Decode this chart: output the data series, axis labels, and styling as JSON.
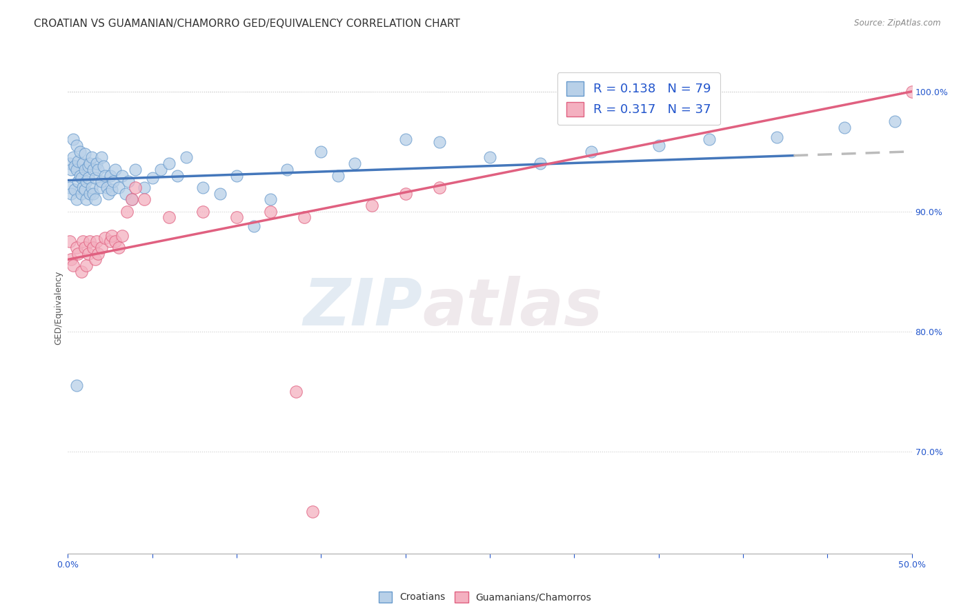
{
  "title": "CROATIAN VS GUAMANIAN/CHAMORRO GED/EQUIVALENCY CORRELATION CHART",
  "source": "Source: ZipAtlas.com",
  "ylabel": "GED/Equivalency",
  "xmin": 0.0,
  "xmax": 0.5,
  "ymin": 0.615,
  "ymax": 1.025,
  "yticks": [
    0.7,
    0.8,
    0.9,
    1.0
  ],
  "ytick_labels": [
    "70.0%",
    "80.0%",
    "90.0%",
    "100.0%"
  ],
  "xticks": [
    0.0,
    0.05,
    0.1,
    0.15,
    0.2,
    0.25,
    0.3,
    0.35,
    0.4,
    0.45,
    0.5
  ],
  "xtick_labels": [
    "0.0%",
    "",
    "",
    "",
    "",
    "",
    "",
    "",
    "",
    "",
    "50.0%"
  ],
  "croatian_R": 0.138,
  "croatian_N": 79,
  "guam_R": 0.317,
  "guam_N": 37,
  "watermark_zip": "ZIP",
  "watermark_atlas": "atlas",
  "legend_label_croatian": "Croatians",
  "legend_label_guam": "Guamanians/Chamorros",
  "color_croatian_fill": "#b8d0e8",
  "color_croatian_edge": "#6699cc",
  "color_guam_fill": "#f4b0c0",
  "color_guam_edge": "#e06080",
  "color_trendline_croatian": "#4477bb",
  "color_trendline_guam": "#e06080",
  "color_trendline_ext": "#bbbbbb",
  "trendline_croatian_y0": 0.926,
  "trendline_croatian_y1": 0.95,
  "trendline_guam_y0": 0.86,
  "trendline_guam_y1": 1.0,
  "trendline_solid_xmax": 0.43,
  "croatian_x": [
    0.001,
    0.001,
    0.002,
    0.002,
    0.003,
    0.003,
    0.004,
    0.004,
    0.005,
    0.005,
    0.005,
    0.006,
    0.006,
    0.007,
    0.007,
    0.008,
    0.008,
    0.009,
    0.009,
    0.01,
    0.01,
    0.01,
    0.011,
    0.011,
    0.012,
    0.012,
    0.013,
    0.013,
    0.014,
    0.014,
    0.015,
    0.015,
    0.016,
    0.016,
    0.017,
    0.018,
    0.019,
    0.02,
    0.02,
    0.021,
    0.022,
    0.023,
    0.024,
    0.025,
    0.026,
    0.027,
    0.028,
    0.03,
    0.032,
    0.034,
    0.036,
    0.038,
    0.04,
    0.045,
    0.05,
    0.055,
    0.06,
    0.065,
    0.07,
    0.08,
    0.09,
    0.1,
    0.11,
    0.12,
    0.13,
    0.15,
    0.16,
    0.17,
    0.2,
    0.22,
    0.25,
    0.28,
    0.31,
    0.35,
    0.38,
    0.42,
    0.46,
    0.49,
    0.005
  ],
  "croatian_y": [
    0.94,
    0.92,
    0.935,
    0.915,
    0.945,
    0.96,
    0.938,
    0.918,
    0.955,
    0.935,
    0.91,
    0.942,
    0.925,
    0.93,
    0.95,
    0.928,
    0.915,
    0.94,
    0.92,
    0.935,
    0.948,
    0.918,
    0.925,
    0.91,
    0.938,
    0.928,
    0.915,
    0.94,
    0.92,
    0.945,
    0.935,
    0.915,
    0.928,
    0.91,
    0.94,
    0.935,
    0.92,
    0.945,
    0.925,
    0.938,
    0.93,
    0.92,
    0.915,
    0.93,
    0.918,
    0.925,
    0.935,
    0.92,
    0.93,
    0.915,
    0.925,
    0.91,
    0.935,
    0.92,
    0.928,
    0.935,
    0.94,
    0.93,
    0.945,
    0.92,
    0.915,
    0.93,
    0.888,
    0.91,
    0.935,
    0.95,
    0.93,
    0.94,
    0.96,
    0.958,
    0.945,
    0.94,
    0.95,
    0.955,
    0.96,
    0.962,
    0.97,
    0.975,
    0.755
  ],
  "guam_x": [
    0.001,
    0.002,
    0.003,
    0.005,
    0.006,
    0.008,
    0.009,
    0.01,
    0.011,
    0.012,
    0.013,
    0.015,
    0.016,
    0.017,
    0.018,
    0.02,
    0.022,
    0.025,
    0.026,
    0.028,
    0.03,
    0.032,
    0.035,
    0.038,
    0.04,
    0.045,
    0.06,
    0.08,
    0.1,
    0.12,
    0.14,
    0.18,
    0.2,
    0.22,
    0.145,
    0.5,
    0.135
  ],
  "guam_y": [
    0.875,
    0.86,
    0.855,
    0.87,
    0.865,
    0.85,
    0.875,
    0.87,
    0.855,
    0.865,
    0.875,
    0.87,
    0.86,
    0.875,
    0.865,
    0.87,
    0.878,
    0.875,
    0.88,
    0.875,
    0.87,
    0.88,
    0.9,
    0.91,
    0.92,
    0.91,
    0.895,
    0.9,
    0.895,
    0.9,
    0.895,
    0.905,
    0.915,
    0.92,
    0.65,
    1.0,
    0.75
  ]
}
